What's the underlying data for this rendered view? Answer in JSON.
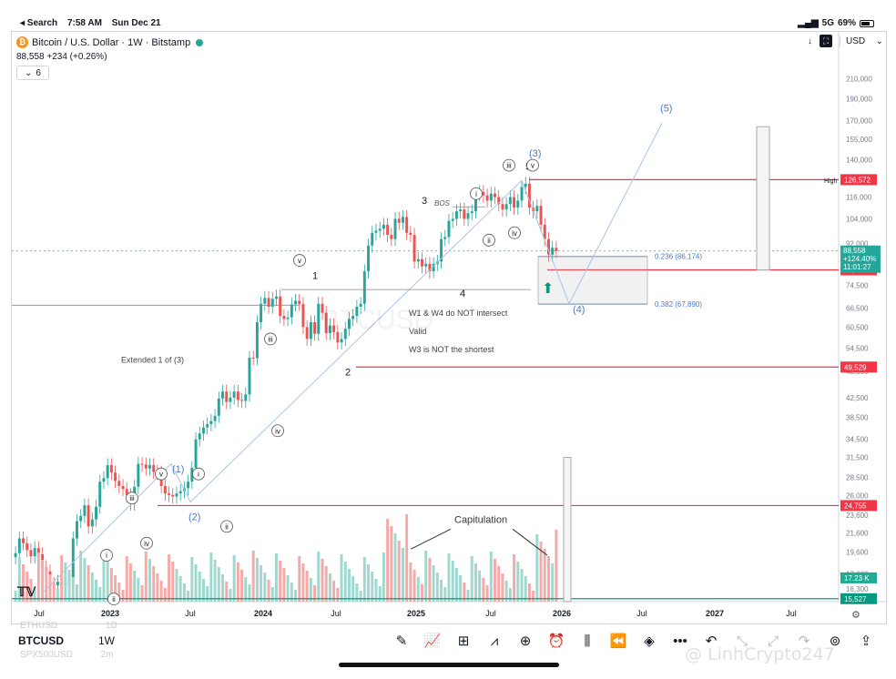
{
  "status_bar": {
    "back_label": "◂ Search",
    "time": "7:58 AM",
    "date": "Sun Dec 21",
    "network": "5G",
    "battery": "69%"
  },
  "header": {
    "title": "Bitcoin / U.S. Dollar · 1W · Bitstamp",
    "logo_letter": "₿",
    "price_line": "88,558  +234 (+0.26%)",
    "collapsed_count": "6"
  },
  "top_right": {
    "currency": "USD"
  },
  "chart_data": {
    "type": "candlestick",
    "symbol": "BTCUSD",
    "timeframe": "1W",
    "exchange": "Bitstamp",
    "y_scale": "log",
    "ylim": [
      15300,
      240000
    ],
    "y_ticks": [
      "210,000",
      "190,000",
      "170,000",
      "155,000",
      "140,000",
      "116,000",
      "104,000",
      "92,000",
      "74,500",
      "66,500",
      "60,500",
      "54,500",
      "48,500",
      "42,500",
      "38,500",
      "34,500",
      "31,500",
      "28,500",
      "26,000",
      "23,600",
      "21,600",
      "19,600",
      "17,600",
      "16,300",
      "15,475"
    ],
    "x_ticks": [
      "Jul",
      "2023",
      "Jul",
      "2024",
      "Jul",
      "2025",
      "Jul",
      "2026",
      "Jul",
      "2027",
      "Jul"
    ],
    "price_close": [
      19500,
      21000,
      20500,
      19800,
      19200,
      20000,
      19400,
      18200,
      17800,
      16700,
      16600,
      16900,
      16600,
      16800,
      17200,
      21000,
      22900,
      23500,
      24800,
      22300,
      23100,
      24600,
      27900,
      28400,
      30300,
      29200,
      28000,
      27300,
      26900,
      26100,
      25000,
      27200,
      30500,
      30400,
      29800,
      30300,
      29300,
      29200,
      27300,
      26300,
      26100,
      25900,
      26300,
      26600,
      27000,
      27900,
      29900,
      34500,
      35500,
      36600,
      37200,
      37800,
      38800,
      42300,
      43800,
      41600,
      42500,
      43800,
      42000,
      41800,
      43200,
      51900,
      51800,
      62000,
      68000,
      70000,
      67000,
      69700,
      70500,
      64000,
      63000,
      63500,
      67800,
      69000,
      67900,
      60500,
      57000,
      62000,
      58500,
      68000,
      65000,
      58700,
      61000,
      59000,
      56000,
      57000,
      60000,
      63000,
      64000,
      67000,
      68000,
      80000,
      91000,
      97000,
      98000,
      99000,
      101000,
      96000,
      94000,
      104000,
      102000,
      105000,
      97000,
      96000,
      84000,
      85000,
      82000,
      83000,
      80000,
      83000,
      84000,
      94000,
      95000,
      103000,
      104000,
      108000,
      109000,
      104000,
      107000,
      108000,
      118000,
      119000,
      117000,
      114000,
      118000,
      116000,
      112000,
      109000,
      112000,
      116000,
      110000,
      114000,
      122000,
      124000,
      110000,
      108000,
      111000,
      101000,
      94000,
      87000,
      90000,
      88558
    ],
    "volume_source_bars": "approx",
    "levels": [
      {
        "label": "High",
        "price": 126272,
        "color": "#f23645"
      },
      {
        "price": 126572,
        "label": "126,572",
        "color": "#f23645"
      },
      {
        "price": 80562,
        "label": "80,562",
        "color": "#f23645"
      },
      {
        "price": 49529,
        "label": "49,529",
        "color": "#f23645"
      },
      {
        "price": 24755,
        "label": "24,755",
        "color": "#f23645"
      },
      {
        "price": 15527,
        "label": "15,527",
        "color": "#089981"
      },
      {
        "price": 17230,
        "label": "17.23 K",
        "color": "#22ab94"
      }
    ],
    "last_price_tag": {
      "price": "88,558",
      "pct": "+124.40%",
      "countdown": "11:01:27"
    },
    "fib": [
      {
        "label": "0.236 (86,174)",
        "price": 86174
      },
      {
        "label": "0.382 (67,890)",
        "price": 67890
      }
    ],
    "annotations": {
      "wave_major": [
        "(1)",
        "(2)",
        "(3)",
        "(4)",
        "(5)"
      ],
      "wave_minor": [
        "i",
        "ii",
        "iii",
        "iv",
        "v"
      ],
      "wave_numbers": [
        "1",
        "2",
        "3",
        "4",
        "5"
      ],
      "bos": "BOS",
      "notes": [
        "W1 & W4 do NOT intersect",
        "Valid",
        "W3 is NOT the shortest"
      ],
      "extended": "Extended 1 of (3)",
      "capitulation": "Capitulation",
      "ghost_text": "BTCUSD"
    },
    "colors": {
      "up": "#26a69a",
      "down": "#ef5350",
      "vol_up": "#9fd8cf",
      "vol_down": "#f7a9a7",
      "wave": "#4a7bc8",
      "level": "#f23645",
      "teal_level": "#089981"
    }
  },
  "bottom": {
    "ghost_symbol_1": "ETHUSD",
    "ghost_tf_1": "1D",
    "ghost_symbol_2": "SPX500USD",
    "ghost_tf_2": "2m",
    "symbol": "BTCUSD",
    "timeframe": "1W",
    "watermark": "@ LinhCrypto247",
    "tools": [
      "pen-icon",
      "indicators-icon",
      "templates-icon",
      "trend-icon",
      "add-icon",
      "alert-icon",
      "candles-icon",
      "replay-icon",
      "layers-icon",
      "more-icon",
      "undo-icon",
      "collapse-icon",
      "expand-icon",
      "redo-icon",
      "target-icon",
      "share-icon"
    ]
  }
}
